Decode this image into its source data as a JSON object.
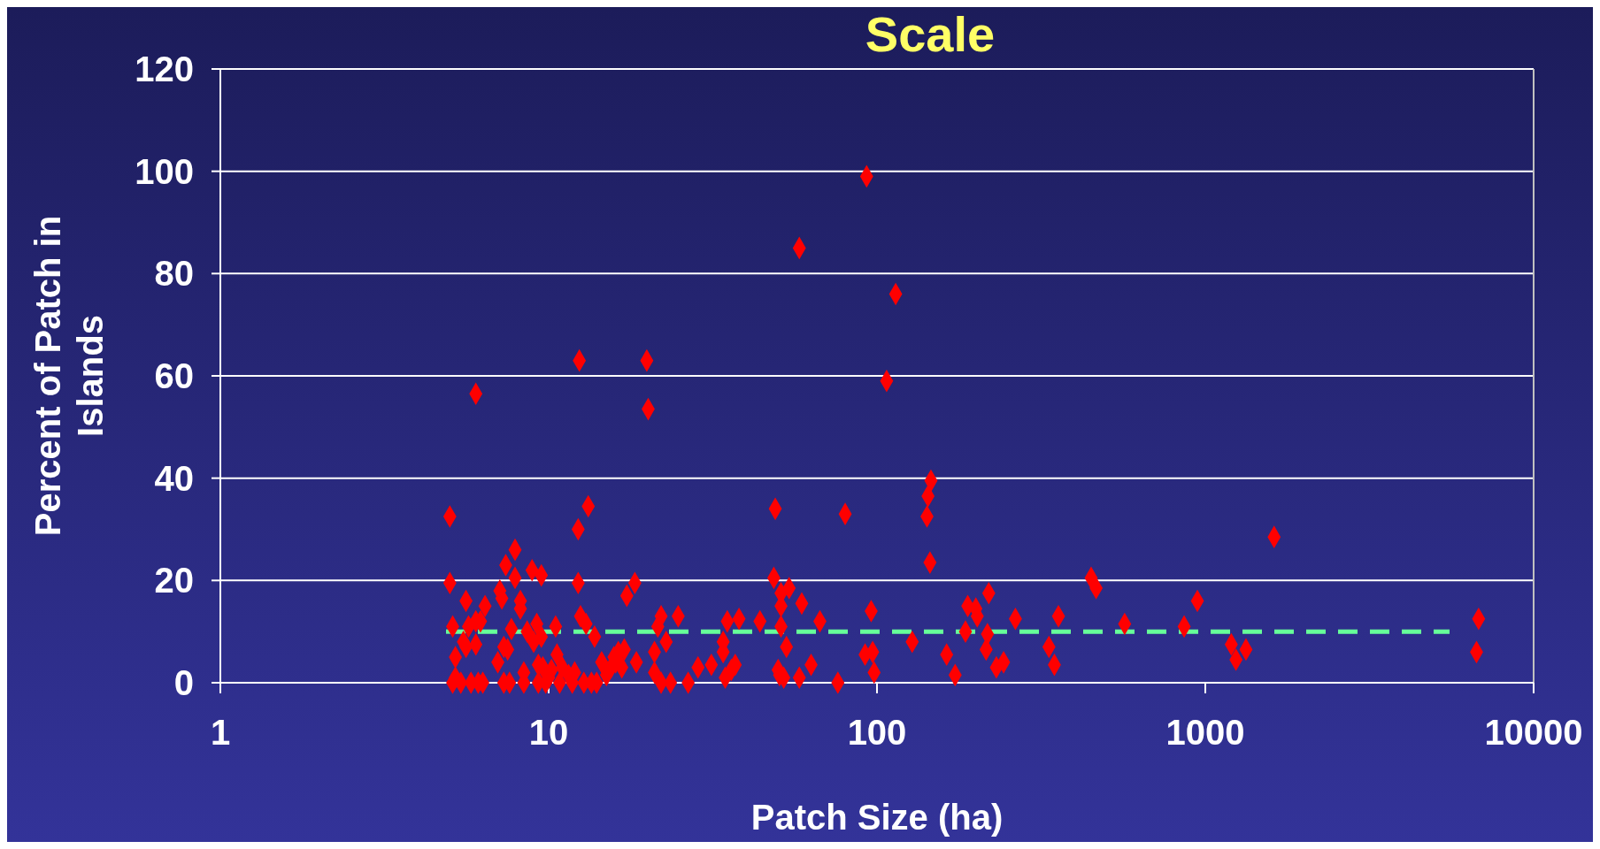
{
  "chart_data": {
    "type": "scatter",
    "title": "Scale",
    "xlabel": "Patch Size (ha)",
    "ylabel": "Percent of Patch in Islands",
    "log": "x",
    "grid": "y",
    "marker": "diamond",
    "xlim": [
      1,
      10000
    ],
    "xticks": [
      1,
      10,
      100,
      1000,
      10000
    ],
    "ylim": [
      0,
      120
    ],
    "yticks": [
      0,
      20,
      40,
      60,
      80,
      100,
      120
    ],
    "ref_lines": [
      {
        "axis": "y",
        "value": 10,
        "color": "#66ff99",
        "line_style": "dashed"
      }
    ],
    "series": [
      {
        "color": "#ff0000",
        "x": [
          5.0,
          5.0,
          5.1,
          5.2,
          5.1,
          5.2,
          5.4,
          5.5,
          5.6,
          5.6,
          5.7,
          5.8,
          6.0,
          6.0,
          6.0,
          6.1,
          6.2,
          6.3,
          6.4,
          7.0,
          7.1,
          7.2,
          7.3,
          7.3,
          7.4,
          7.5,
          7.6,
          7.7,
          7.9,
          7.9,
          8.2,
          8.2,
          8.4,
          8.4,
          8.6,
          8.9,
          9.0,
          9.2,
          9.3,
          9.3,
          9.5,
          9.5,
          9.6,
          9.8,
          10.0,
          10.2,
          10.5,
          10.6,
          10.8,
          11.0,
          11.5,
          11.8,
          12.0,
          12.3,
          12.3,
          12.4,
          12.5,
          12.8,
          13.0,
          13.2,
          13.5,
          13.8,
          14.0,
          14.5,
          15.0,
          15.5,
          15.8,
          16.0,
          16.3,
          16.7,
          17.0,
          17.3,
          18.3,
          18.5,
          19.9,
          20.1,
          21,
          21,
          21.5,
          22,
          22,
          22.8,
          23.5,
          24.8,
          26.6,
          28.5,
          31.3,
          34,
          34,
          34.5,
          35,
          36,
          37,
          38,
          44,
          48.5,
          49,
          50,
          50.5,
          51,
          51,
          51,
          52,
          53,
          54,
          58,
          58,
          59,
          63,
          67,
          76,
          80,
          93,
          92,
          96,
          97,
          98,
          107,
          114,
          128,
          142,
          143,
          145,
          146,
          163,
          173,
          186,
          189,
          200,
          202,
          215,
          217,
          219,
          231,
          243,
          264,
          334,
          347,
          357,
          449,
          465,
          568,
          862,
          946,
          1200,
          1240,
          1330,
          1620,
          6700,
          6800
        ],
        "values": [
          32.5,
          19.5,
          11,
          5,
          0,
          1,
          0,
          8,
          16,
          7,
          11,
          0,
          56.5,
          7.5,
          12,
          0,
          12,
          0,
          15,
          4,
          18,
          16.5,
          7,
          0,
          23,
          6.5,
          0,
          10.5,
          26,
          20.5,
          16,
          14.5,
          2,
          0,
          10,
          22,
          8,
          11.5,
          3.5,
          0,
          21,
          9,
          3,
          0,
          1,
          2.5,
          11,
          5.5,
          0,
          3,
          1.5,
          0,
          2,
          30,
          19.5,
          63,
          13,
          0,
          11.5,
          34.5,
          0,
          9,
          0,
          4,
          1.5,
          3,
          5,
          4,
          6,
          3,
          6.5,
          17,
          19.5,
          4,
          63,
          53.5,
          6,
          2,
          11,
          13,
          0,
          8,
          0,
          13,
          0,
          3,
          3.5,
          8,
          6,
          1,
          12,
          2.5,
          3.5,
          12.5,
          12,
          20.5,
          34,
          2.5,
          1.5,
          17.5,
          11,
          15,
          1,
          7,
          18.5,
          85,
          1,
          15.5,
          3.5,
          12,
          0,
          33,
          99,
          5.5,
          14,
          6,
          2,
          59,
          76,
          8,
          32.5,
          36.5,
          23.5,
          39.5,
          5.5,
          1.5,
          10,
          15,
          14.5,
          13,
          6.5,
          9.5,
          17.5,
          3,
          4,
          12.5,
          7,
          3.5,
          13,
          20.5,
          18.5,
          11.5,
          11,
          16,
          7.5,
          4.5,
          6.5,
          28.5,
          6,
          12.5
        ]
      }
    ]
  }
}
